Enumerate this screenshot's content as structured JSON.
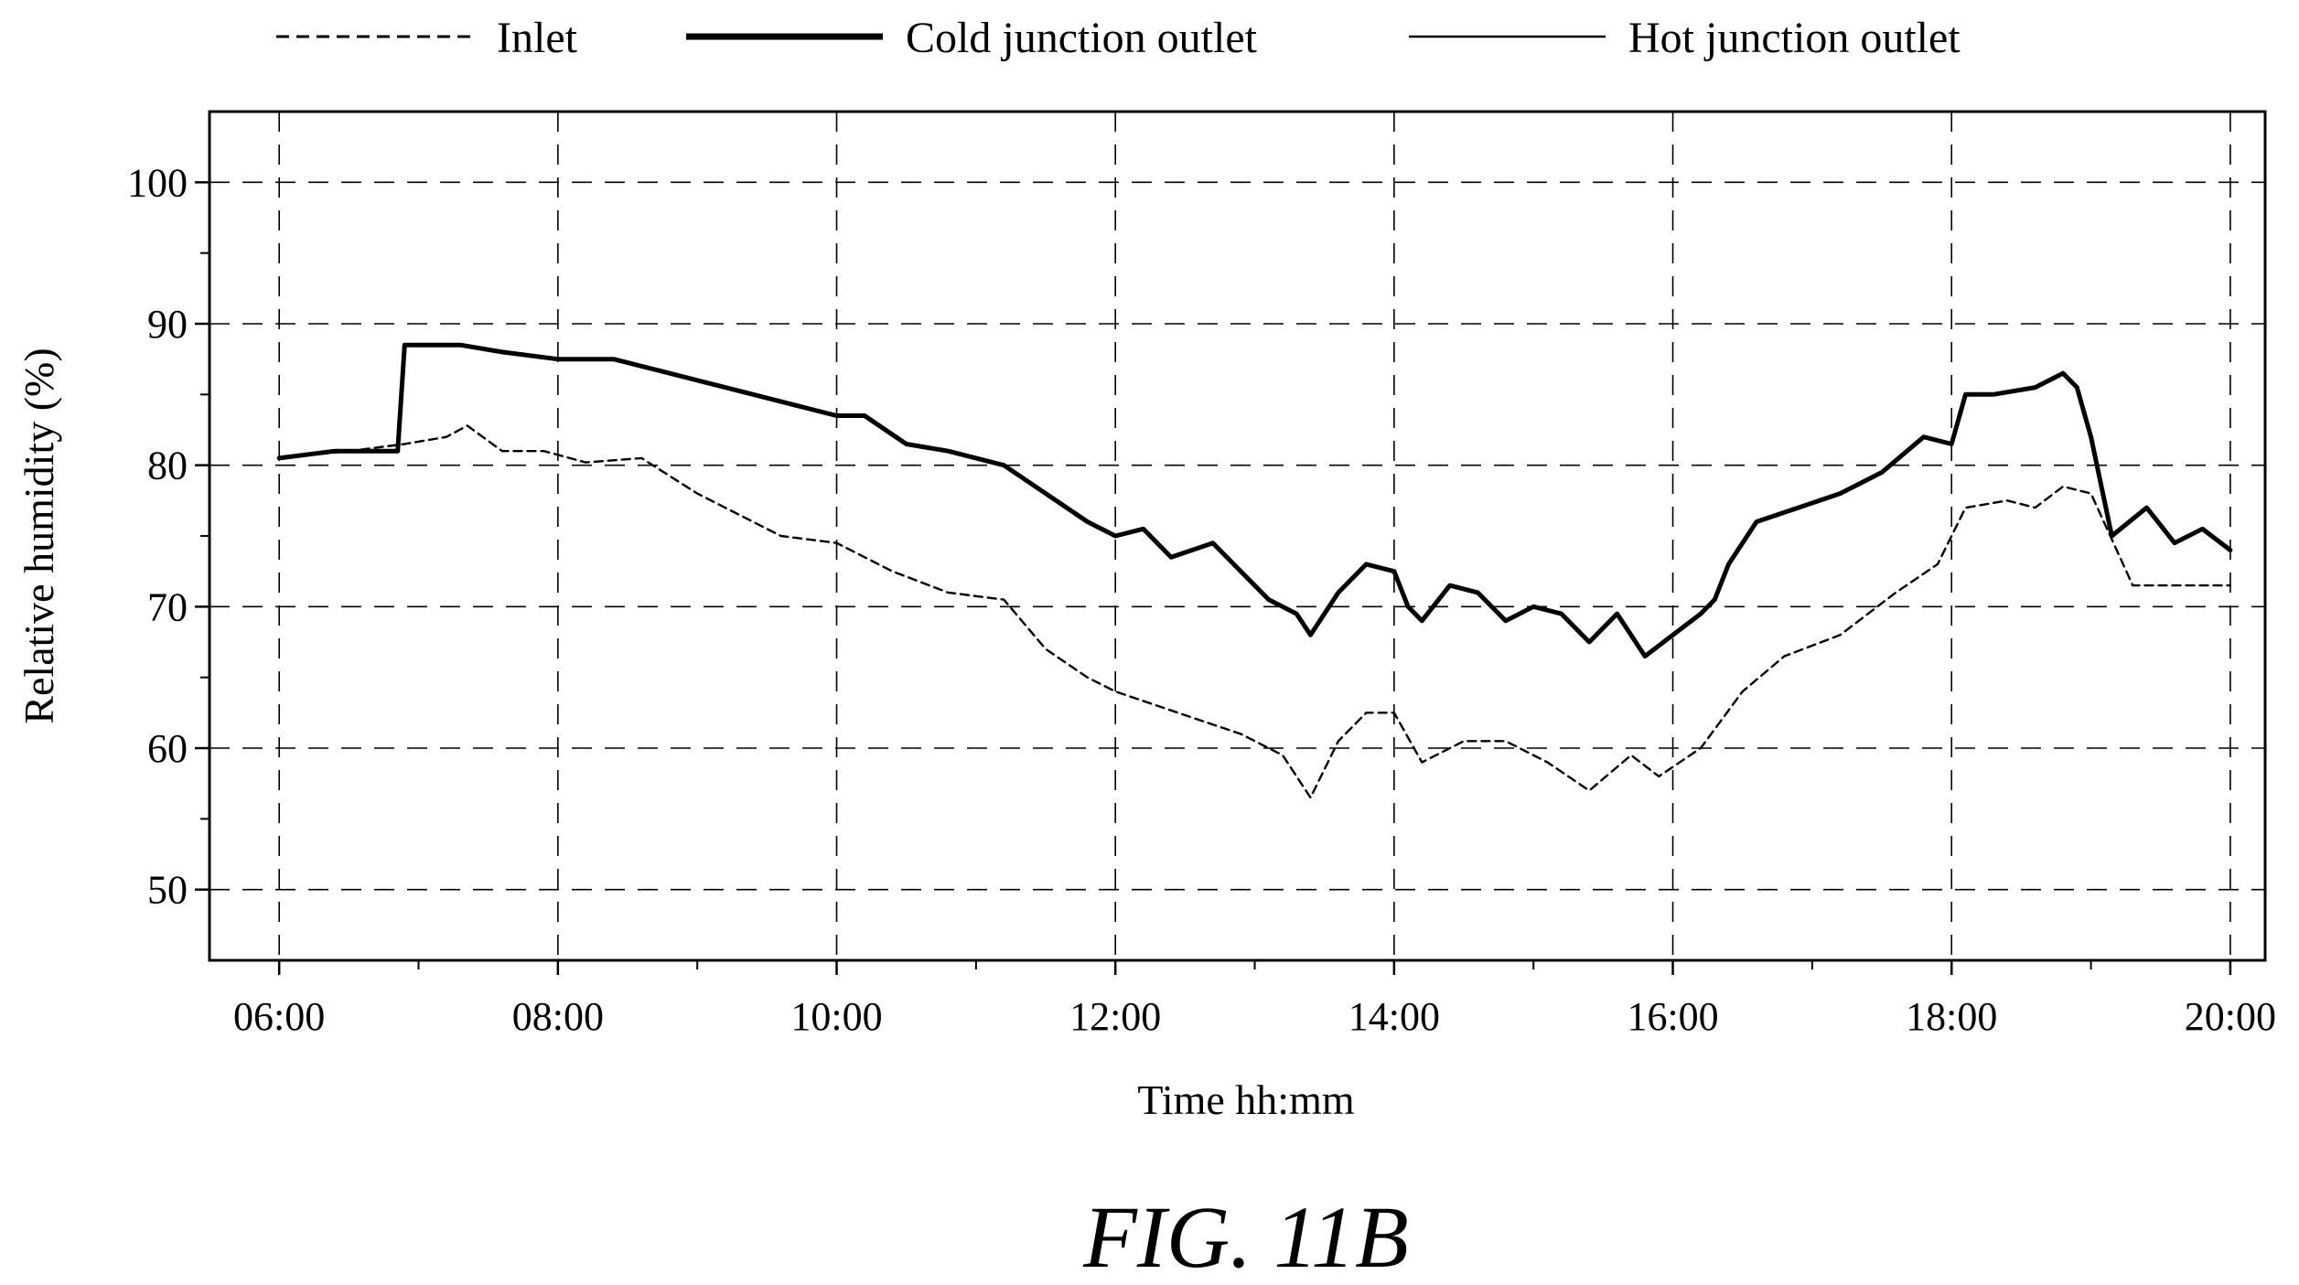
{
  "figure_label": "FIG. 11B",
  "chart_data": {
    "type": "line",
    "title": "",
    "xlabel": "Time hh:mm",
    "ylabel": "Relative humidity (%)",
    "x_unit": "hours (time of day)",
    "xlim": [
      5.5,
      20.25
    ],
    "ylim": [
      45,
      105
    ],
    "x_ticks": [
      6,
      8,
      10,
      12,
      14,
      16,
      18,
      20
    ],
    "x_tick_labels": [
      "06:00",
      "08:00",
      "10:00",
      "12:00",
      "14:00",
      "16:00",
      "18:00",
      "20:00"
    ],
    "y_ticks": [
      50,
      60,
      70,
      80,
      90,
      100
    ],
    "y_tick_labels": [
      "50",
      "60",
      "70",
      "80",
      "90",
      "100"
    ],
    "grid": true,
    "legend_position": "top",
    "series": [
      {
        "name": "Inlet",
        "style": "dashed",
        "x": [
          6.0,
          6.5,
          6.9,
          7.2,
          7.35,
          7.6,
          7.9,
          8.2,
          8.6,
          9.0,
          9.3,
          9.6,
          10.0,
          10.4,
          10.8,
          11.2,
          11.5,
          11.8,
          12.0,
          12.3,
          12.6,
          12.9,
          13.2,
          13.4,
          13.6,
          13.8,
          14.0,
          14.2,
          14.5,
          14.8,
          15.1,
          15.4,
          15.7,
          15.9,
          16.2,
          16.5,
          16.8,
          17.2,
          17.6,
          17.9,
          18.1,
          18.4,
          18.6,
          18.8,
          19.0,
          19.3,
          19.6,
          20.0
        ],
        "y": [
          80.5,
          81.0,
          81.5,
          82.0,
          82.8,
          81.0,
          81.0,
          80.2,
          80.5,
          78.0,
          76.5,
          75.0,
          74.5,
          72.5,
          71.0,
          70.5,
          67.0,
          65.0,
          64.0,
          63.0,
          62.0,
          61.0,
          59.5,
          56.5,
          60.5,
          62.5,
          62.5,
          59.0,
          60.5,
          60.5,
          59.0,
          57.0,
          59.5,
          58.0,
          60.0,
          64.0,
          66.5,
          68.0,
          71.0,
          73.0,
          77.0,
          77.5,
          77.0,
          78.5,
          78.0,
          71.5,
          71.5,
          71.5
        ]
      },
      {
        "name": "Cold junction outlet",
        "style": "thick",
        "x": [
          6.0,
          6.4,
          6.85,
          6.9,
          7.0,
          7.3,
          7.6,
          8.0,
          8.4,
          8.8,
          9.2,
          9.6,
          10.0,
          10.2,
          10.5,
          10.8,
          11.2,
          11.5,
          11.8,
          12.0,
          12.2,
          12.4,
          12.7,
          12.9,
          13.1,
          13.3,
          13.4,
          13.6,
          13.8,
          14.0,
          14.1,
          14.2,
          14.4,
          14.6,
          14.8,
          15.0,
          15.2,
          15.4,
          15.6,
          15.8,
          16.0,
          16.2,
          16.3,
          16.4,
          16.6,
          16.9,
          17.2,
          17.5,
          17.8,
          18.0,
          18.1,
          18.3,
          18.6,
          18.8,
          18.9,
          19.0,
          19.15,
          19.4,
          19.6,
          19.8,
          20.0
        ],
        "y": [
          80.5,
          81.0,
          81.0,
          88.5,
          88.5,
          88.5,
          88.0,
          87.5,
          87.5,
          86.5,
          85.5,
          84.5,
          83.5,
          83.5,
          81.5,
          81.0,
          80.0,
          78.0,
          76.0,
          75.0,
          75.5,
          73.5,
          74.5,
          72.5,
          70.5,
          69.5,
          68.0,
          71.0,
          73.0,
          72.5,
          70.0,
          69.0,
          71.5,
          71.0,
          69.0,
          70.0,
          69.5,
          67.5,
          69.5,
          66.5,
          68.0,
          69.5,
          70.5,
          73.0,
          76.0,
          77.0,
          78.0,
          79.5,
          82.0,
          81.5,
          85.0,
          85.0,
          85.5,
          86.5,
          85.5,
          82.0,
          75.0,
          77.0,
          74.5,
          75.5,
          74.0
        ]
      },
      {
        "name": "Hot junction outlet",
        "style": "thin",
        "x": [],
        "y": []
      }
    ]
  }
}
